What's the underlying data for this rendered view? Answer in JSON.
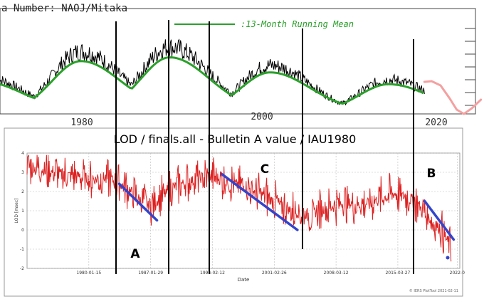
{
  "top_panel": {
    "header_text": "a  Number: NAOJ/Mitaka",
    "legend_label": ":13-Month Running Mean",
    "x_tick_labels": [
      "1980",
      "2000",
      "2020"
    ],
    "colors": {
      "raw": "#000000",
      "running_mean": "#2aa02a",
      "forecast": "#f4a0a0"
    }
  },
  "lod_panel": {
    "title": "LOD / finals.all - Bulletin A value / IAU1980",
    "ylabel": "LOD [msec]",
    "xlabel": "Date",
    "y_tick_labels": [
      "4",
      "3",
      "2",
      "1",
      "0",
      "-1",
      "-2"
    ],
    "x_tick_labels": [
      "1980-01-15",
      "1987-01-29",
      "1994-02-12",
      "2001-02-26",
      "2008-03-12",
      "2015-03-27",
      "2022-0"
    ],
    "footer_text": "© IERS PlotTool 2021-02-11",
    "colors": {
      "series": "#dd2222",
      "trend": "#3344cc"
    }
  },
  "annotations": [
    "A",
    "B",
    "C"
  ],
  "chart_data": [
    {
      "type": "line",
      "title": "",
      "xlabel": "",
      "ylabel": "",
      "series": [
        {
          "name": "",
          "x": [
            1973,
            1976,
            1979,
            1981,
            1984,
            1986,
            1989,
            1991,
            1994,
            1996,
            1999,
            2001,
            2004,
            2008,
            2011,
            2014,
            2016,
            2018
          ]
        },
        {
          "name": "13-Month Running Mean",
          "x": [
            1973,
            1976,
            1979,
            1981,
            1984,
            1986,
            1989,
            1991,
            1994,
            1996,
            1999,
            2001,
            2004,
            2008,
            2011,
            2014,
            2016,
            2018
          ]
        }
      ],
      "forecast": {
        "x": [
          2018,
          2019,
          2020,
          2021,
          2022,
          2023,
          2024
        ]
      }
    },
    {
      "type": "line",
      "title": "LOD / finals.all - Bulletin A value / IAU1980",
      "xlabel": "Date",
      "ylabel": "LOD [msec]",
      "ylim": [
        -2,
        4
      ],
      "series": [
        {
          "name": "",
          "x": [
            1973,
            1975,
            1977,
            1979,
            1980,
            1982,
            1984,
            1986,
            1987.1,
            1988,
            1990,
            1992,
            1994,
            1996,
            1998,
            2000,
            2001,
            2003,
            2005,
            2007,
            2009,
            2011,
            2013,
            2015,
            2017,
            2019,
            2020,
            2021.3
          ],
          "y": [
            3.3,
            3.1,
            2.9,
            2.8,
            2.6,
            2.7,
            2.3,
            1.5,
            1.2,
            1.6,
            2.3,
            2.6,
            2.8,
            2.5,
            2.2,
            1.8,
            1.5,
            1.0,
            0.8,
            1.1,
            1.4,
            1.3,
            1.6,
            1.9,
            1.6,
            0.5,
            0.1,
            -0.9
          ]
        }
      ],
      "trend_lines": [
        {
          "label": "A",
          "x": [
            1983.5,
            1987.8
          ],
          "y": [
            2.4,
            0.5
          ]
        },
        {
          "label": "C",
          "x": [
            1995.2,
            2003.8
          ],
          "y": [
            2.9,
            0.0
          ]
        },
        {
          "label": "B",
          "x": [
            2018.3,
            2021.6
          ],
          "y": [
            1.5,
            -0.5
          ]
        }
      ]
    }
  ]
}
